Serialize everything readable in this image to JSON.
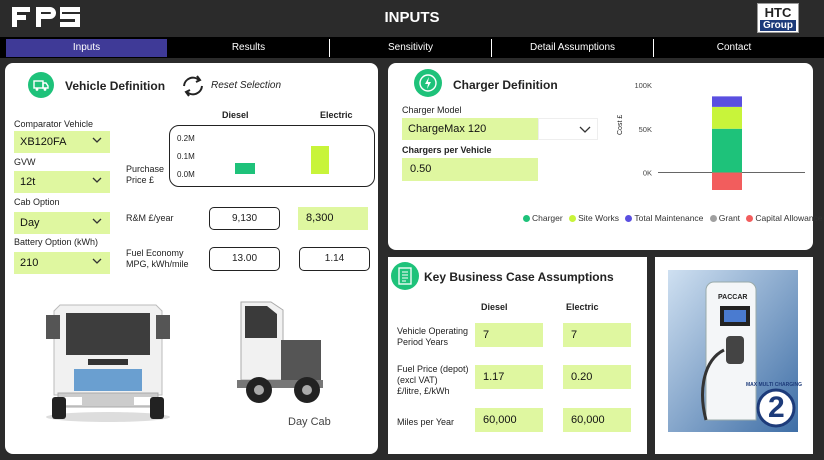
{
  "header": {
    "logo": "FPS",
    "title": "INPUTS",
    "brand_top": "HTC",
    "brand_bottom": "Group"
  },
  "nav": {
    "tabs": [
      {
        "label": "Inputs",
        "active": true
      },
      {
        "label": "Results"
      },
      {
        "label": "Sensitivity"
      },
      {
        "label": "Detail Assumptions"
      },
      {
        "label": "Contact"
      }
    ]
  },
  "vehicle": {
    "title": "Vehicle Definition",
    "reset_label": "Reset Selection",
    "col_diesel": "Diesel",
    "col_electric": "Electric",
    "comparator_label": "Comparator Vehicle",
    "comparator_value": "XB120FA",
    "gvw_label": "GVW",
    "gvw_value": "12t",
    "cab_label": "Cab Option",
    "cab_value": "Day",
    "battery_label": "Battery Option (kWh)",
    "battery_value": "210",
    "purchase_label_1": "Purchase",
    "purchase_label_2": "Price £",
    "rm_label": "R&M £/year",
    "rm_diesel": "9,130",
    "rm_electric": "8,300",
    "fuel_label_1": "Fuel Economy",
    "fuel_label_2": "MPG, kWh/mile",
    "fuel_diesel": "13.00",
    "fuel_electric": "1.14",
    "day_cab_label": "Day Cab"
  },
  "purchase_chart": {
    "ticks": [
      "0.2M",
      "0.1M",
      "0.0M"
    ]
  },
  "charger": {
    "title": "Charger Definition",
    "model_label": "Charger Model",
    "model_value": "ChargeMax 120",
    "per_vehicle_label": "Chargers per Vehicle",
    "per_vehicle_value": "0.50"
  },
  "chart_data": {
    "type": "bar",
    "stacked": true,
    "ylabel": "Cost £",
    "yticks": [
      "100K",
      "50K",
      "0K"
    ],
    "ylim": [
      -20000,
      100000
    ],
    "categories": [
      ""
    ],
    "series": [
      {
        "name": "Charger",
        "color": "#1ec27a",
        "values": [
          50000
        ]
      },
      {
        "name": "Site Works",
        "color": "#c8f43a",
        "values": [
          25000
        ]
      },
      {
        "name": "Total Maintenance",
        "color": "#5a4fe0",
        "values": [
          12000
        ]
      },
      {
        "name": "Grant",
        "color": "#a0a0a0",
        "values": [
          0
        ]
      },
      {
        "name": "Capital Allowance",
        "color": "#f25d5d",
        "values": [
          -20000
        ]
      }
    ],
    "legend": "bottom"
  },
  "business": {
    "title": "Key Business Case Assumptions",
    "col_diesel": "Diesel",
    "col_electric": "Electric",
    "rows": [
      {
        "label_1": "Vehicle Operating",
        "label_2": "Period Years",
        "label_3": "",
        "diesel": "7",
        "electric": "7"
      },
      {
        "label_1": "Fuel Price (depot)",
        "label_2": "(excl VAT)",
        "label_3": "£/litre, £/kWh",
        "diesel": "1.17",
        "electric": "0.20"
      },
      {
        "label_1": "Miles per Year",
        "label_2": "",
        "label_3": "",
        "diesel": "60,000",
        "electric": "60,000"
      }
    ]
  },
  "promo": {
    "brand": "PACCAR",
    "badge_number": "2",
    "badge_text": "MAX MULTI CHARGING"
  },
  "colors": {
    "accent": "#3f3a97",
    "input_fill": "#dff7a0",
    "icon_green": "#1ec27a"
  }
}
